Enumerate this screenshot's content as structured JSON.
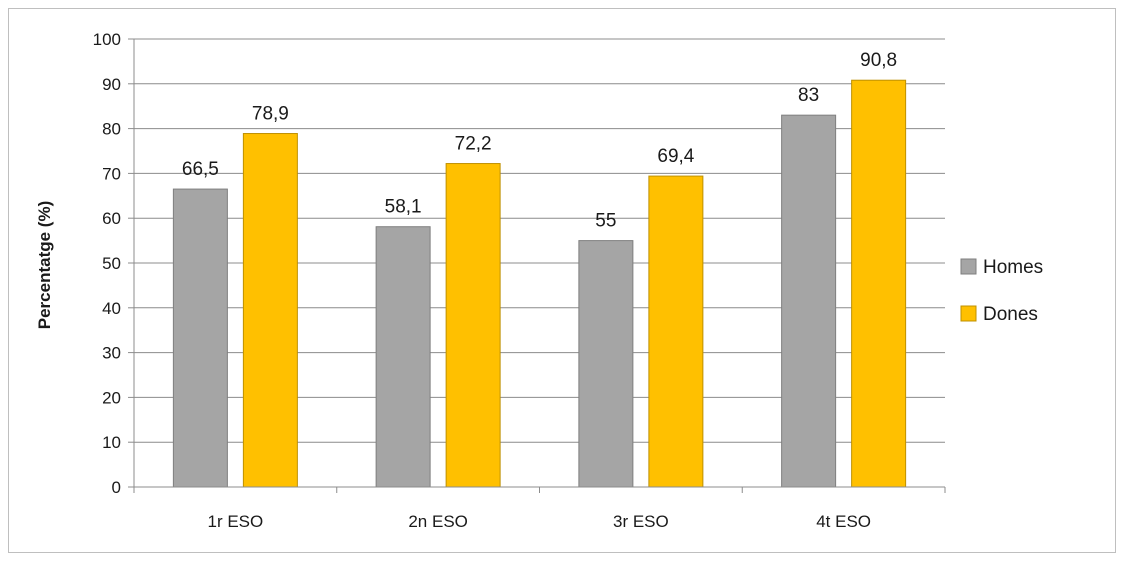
{
  "chart_data": {
    "type": "bar",
    "title": "",
    "xlabel": "",
    "ylabel": "Percentatge (%)",
    "categories": [
      "1r ESO",
      "2n ESO",
      "3r ESO",
      "4t ESO"
    ],
    "series": [
      {
        "name": "Homes",
        "values": [
          66.5,
          58.1,
          55,
          83
        ],
        "labels": [
          "66,5",
          "58,1",
          "55",
          "83"
        ],
        "color": "#a5a5a5"
      },
      {
        "name": "Dones",
        "values": [
          78.9,
          72.2,
          69.4,
          90.8
        ],
        "labels": [
          "78,9",
          "72,2",
          "69,4",
          "90,8"
        ],
        "color": "#ffc000"
      }
    ],
    "ylim": [
      0,
      100
    ],
    "yticks": [
      0,
      10,
      20,
      30,
      40,
      50,
      60,
      70,
      80,
      90,
      100
    ],
    "grid": true,
    "legend_position": "right"
  }
}
